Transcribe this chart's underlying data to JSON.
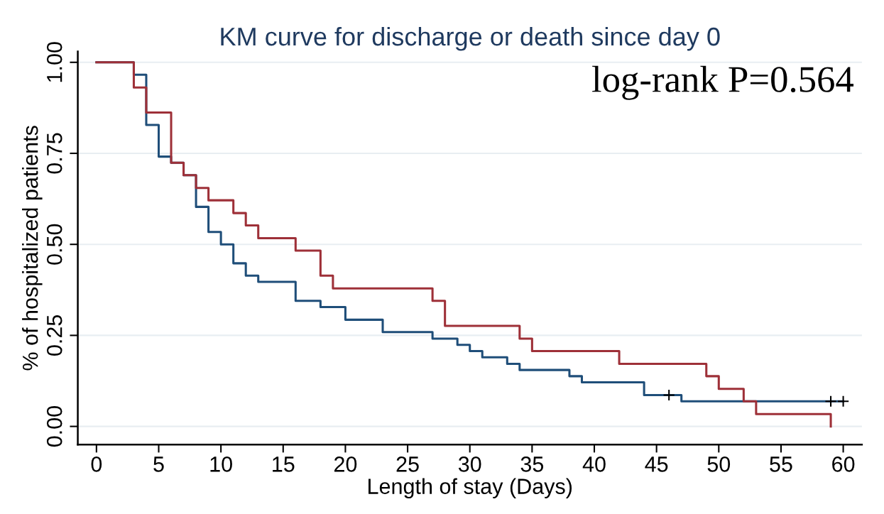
{
  "chart_data": {
    "type": "step",
    "title": "KM curve for discharge or death since day 0",
    "xlabel": "Length of stay (Days)",
    "ylabel": "% of hospitalized patients",
    "annotations": [
      "log-rank P=0.564"
    ],
    "series": [
      {
        "color": "#1f4e79",
        "x": [
          0,
          3,
          4,
          5,
          6,
          7,
          8,
          9,
          10,
          11,
          12,
          13,
          16,
          18,
          20,
          23,
          27,
          29,
          30,
          31,
          33,
          34,
          38,
          39,
          44,
          47,
          60
        ],
        "values": [
          1.0,
          0.966,
          0.828,
          0.741,
          0.724,
          0.69,
          0.603,
          0.534,
          0.5,
          0.448,
          0.414,
          0.397,
          0.345,
          0.328,
          0.293,
          0.259,
          0.241,
          0.224,
          0.207,
          0.19,
          0.172,
          0.155,
          0.138,
          0.121,
          0.086,
          0.069,
          0.069
        ]
      },
      {
        "color": "#9e3038",
        "x": [
          0,
          3,
          4,
          6,
          7,
          8,
          9,
          11,
          12,
          13,
          16,
          18,
          19,
          27,
          28,
          34,
          35,
          42,
          49,
          50,
          52,
          53,
          59
        ],
        "values": [
          1.0,
          0.931,
          0.862,
          0.724,
          0.69,
          0.655,
          0.621,
          0.586,
          0.552,
          0.517,
          0.483,
          0.414,
          0.379,
          0.345,
          0.276,
          0.241,
          0.207,
          0.172,
          0.138,
          0.103,
          0.069,
          0.034,
          0.0
        ]
      },
      {
        "type": "scatter",
        "marker": "cross",
        "color": "#000000",
        "x": [
          46,
          59,
          60
        ],
        "values": [
          0.086,
          0.069,
          0.069
        ]
      }
    ],
    "xlim": [
      -1.5,
      61.5
    ],
    "ylim": [
      -0.05,
      1.03
    ],
    "xticks": [
      0,
      5,
      10,
      15,
      20,
      25,
      30,
      35,
      40,
      45,
      50,
      55,
      60
    ],
    "yticks": [
      {
        "value": 0,
        "label": "0.00"
      },
      {
        "value": 0.25,
        "label": "0.25"
      },
      {
        "value": 0.5,
        "label": "0.50"
      },
      {
        "value": 0.75,
        "label": "0.75"
      },
      {
        "value": 1,
        "label": "1.00"
      }
    ],
    "grid": "y",
    "legend": false
  }
}
